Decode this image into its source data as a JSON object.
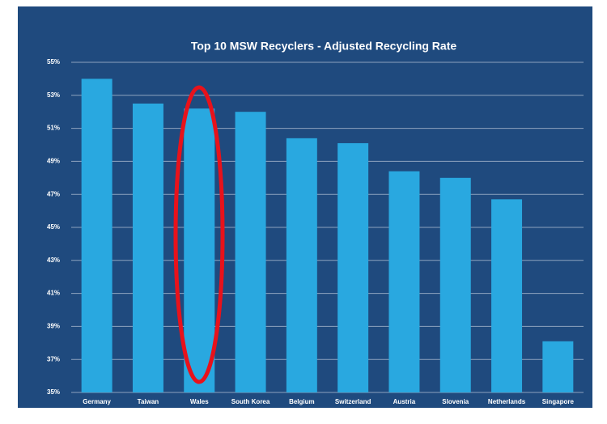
{
  "chart_data": {
    "type": "bar",
    "title": "Top 10 MSW Recyclers - Adjusted Recycling Rate",
    "categories": [
      "Germany",
      "Taiwan",
      "Wales",
      "South Korea",
      "Belgium",
      "Switzerland",
      "Austria",
      "Slovenia",
      "Netherlands",
      "Singapore"
    ],
    "values": [
      54.0,
      52.5,
      52.2,
      52.0,
      50.4,
      50.1,
      48.4,
      48.0,
      46.7,
      38.1
    ],
    "color": "#29a8e0",
    "ylim": [
      35,
      55
    ],
    "yticks": [
      {
        "value": 35,
        "label": "35%"
      },
      {
        "value": 37,
        "label": "37%"
      },
      {
        "value": 39,
        "label": "39%"
      },
      {
        "value": 41,
        "label": "41%"
      },
      {
        "value": 43,
        "label": "43%"
      },
      {
        "value": 45,
        "label": "45%"
      },
      {
        "value": 47,
        "label": "47%"
      },
      {
        "value": 49,
        "label": "49%"
      },
      {
        "value": 51,
        "label": "51%"
      },
      {
        "value": 53,
        "label": "53%"
      },
      {
        "value": 55,
        "label": "55%"
      }
    ],
    "grid": true
  }
}
